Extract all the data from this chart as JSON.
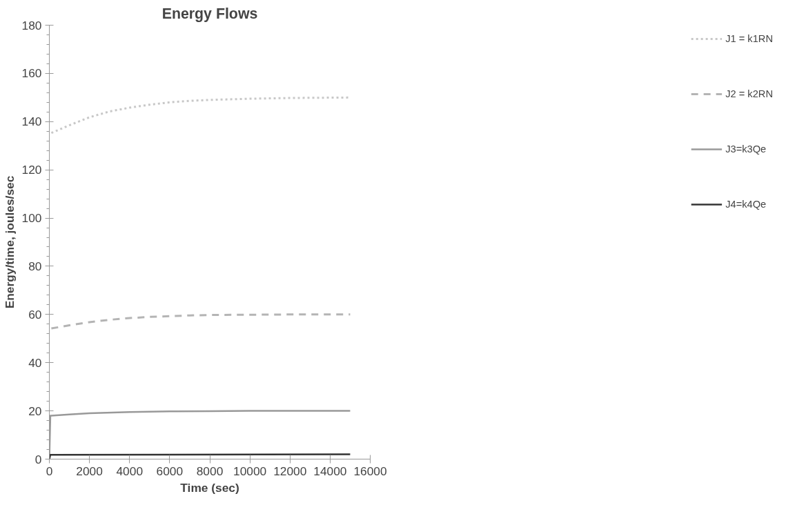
{
  "chart_data": {
    "type": "line",
    "title": "Energy Flows",
    "xlabel": "Time (sec)",
    "ylabel": "Energy/time, joules/sec",
    "xlim": [
      0,
      16000
    ],
    "xticks": [
      0,
      2000,
      4000,
      6000,
      8000,
      10000,
      12000,
      14000,
      16000
    ],
    "ylim": [
      0,
      180
    ],
    "yticks": [
      0,
      20,
      40,
      60,
      80,
      100,
      120,
      140,
      160,
      180
    ],
    "grid": false,
    "legend": "right",
    "marker": "none",
    "series": [
      {
        "name": "J1 = k1RN",
        "color": "#c8c8c8",
        "line_style": "dotted",
        "x": [
          100,
          1000,
          2000,
          3000,
          4000,
          5000,
          6000,
          7000,
          8000,
          10000,
          12000,
          15000
        ],
        "values": [
          135.3,
          138.5,
          141.8,
          144.2,
          145.8,
          147,
          148,
          148.6,
          149,
          149.5,
          149.8,
          150
        ]
      },
      {
        "name": "J2 = k2RN",
        "color": "#b4b4b4",
        "line_style": "dashed",
        "x": [
          100,
          1000,
          2000,
          3000,
          4000,
          5000,
          6000,
          7000,
          8000,
          10000,
          12000,
          15000
        ],
        "values": [
          54.2,
          55.5,
          56.8,
          57.8,
          58.5,
          59,
          59.3,
          59.6,
          59.8,
          59.9,
          60,
          60
        ]
      },
      {
        "name": "J3=k3Qe",
        "color": "#999999",
        "line_style": "solid",
        "x": [
          0,
          50,
          100,
          1000,
          2000,
          4000,
          6000,
          8000,
          10000,
          15000
        ],
        "values": [
          0,
          18,
          18,
          18.5,
          19,
          19.5,
          19.8,
          19.9,
          20,
          20
        ]
      },
      {
        "name": "J4=k4Qe",
        "color": "#333333",
        "line_style": "solid",
        "x": [
          0,
          50,
          15000
        ],
        "values": [
          0,
          1.8,
          2
        ]
      }
    ]
  }
}
